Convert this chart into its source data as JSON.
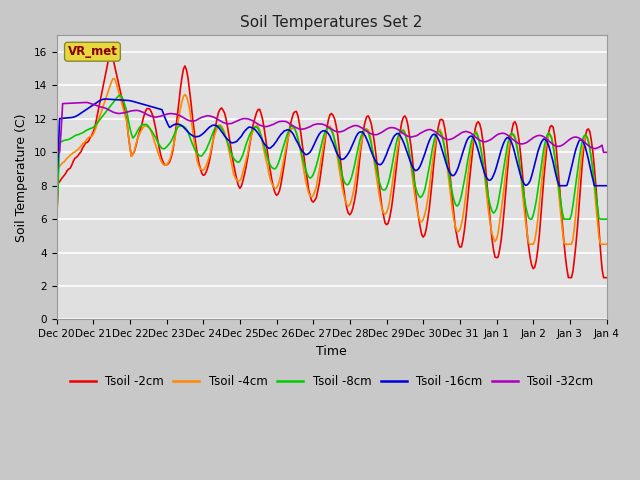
{
  "title": "Soil Temperatures Set 2",
  "xlabel": "Time",
  "ylabel": "Soil Temperature (C)",
  "ylim": [
    0,
    17
  ],
  "yticks": [
    0,
    2,
    4,
    6,
    8,
    10,
    12,
    14,
    16
  ],
  "x_labels": [
    "Dec 20",
    "Dec 21",
    "Dec 22",
    "Dec 23",
    "Dec 24",
    "Dec 25",
    "Dec 26",
    "Dec 27",
    "Dec 28",
    "Dec 29",
    "Dec 30",
    "Dec 31",
    "Jan 1",
    "Jan 2",
    "Jan 3",
    "Jan 4"
  ],
  "fig_bg": "#c8c8c8",
  "plot_bg": "#e0e0e0",
  "grid_color": "#ffffff",
  "legend_label": "VR_met",
  "series_colors": {
    "Tsoil -2cm": "#ee0000",
    "Tsoil -4cm": "#ff8800",
    "Tsoil -8cm": "#00cc00",
    "Tsoil -16cm": "#0000dd",
    "Tsoil -32cm": "#aa00bb"
  },
  "lw": 1.2
}
